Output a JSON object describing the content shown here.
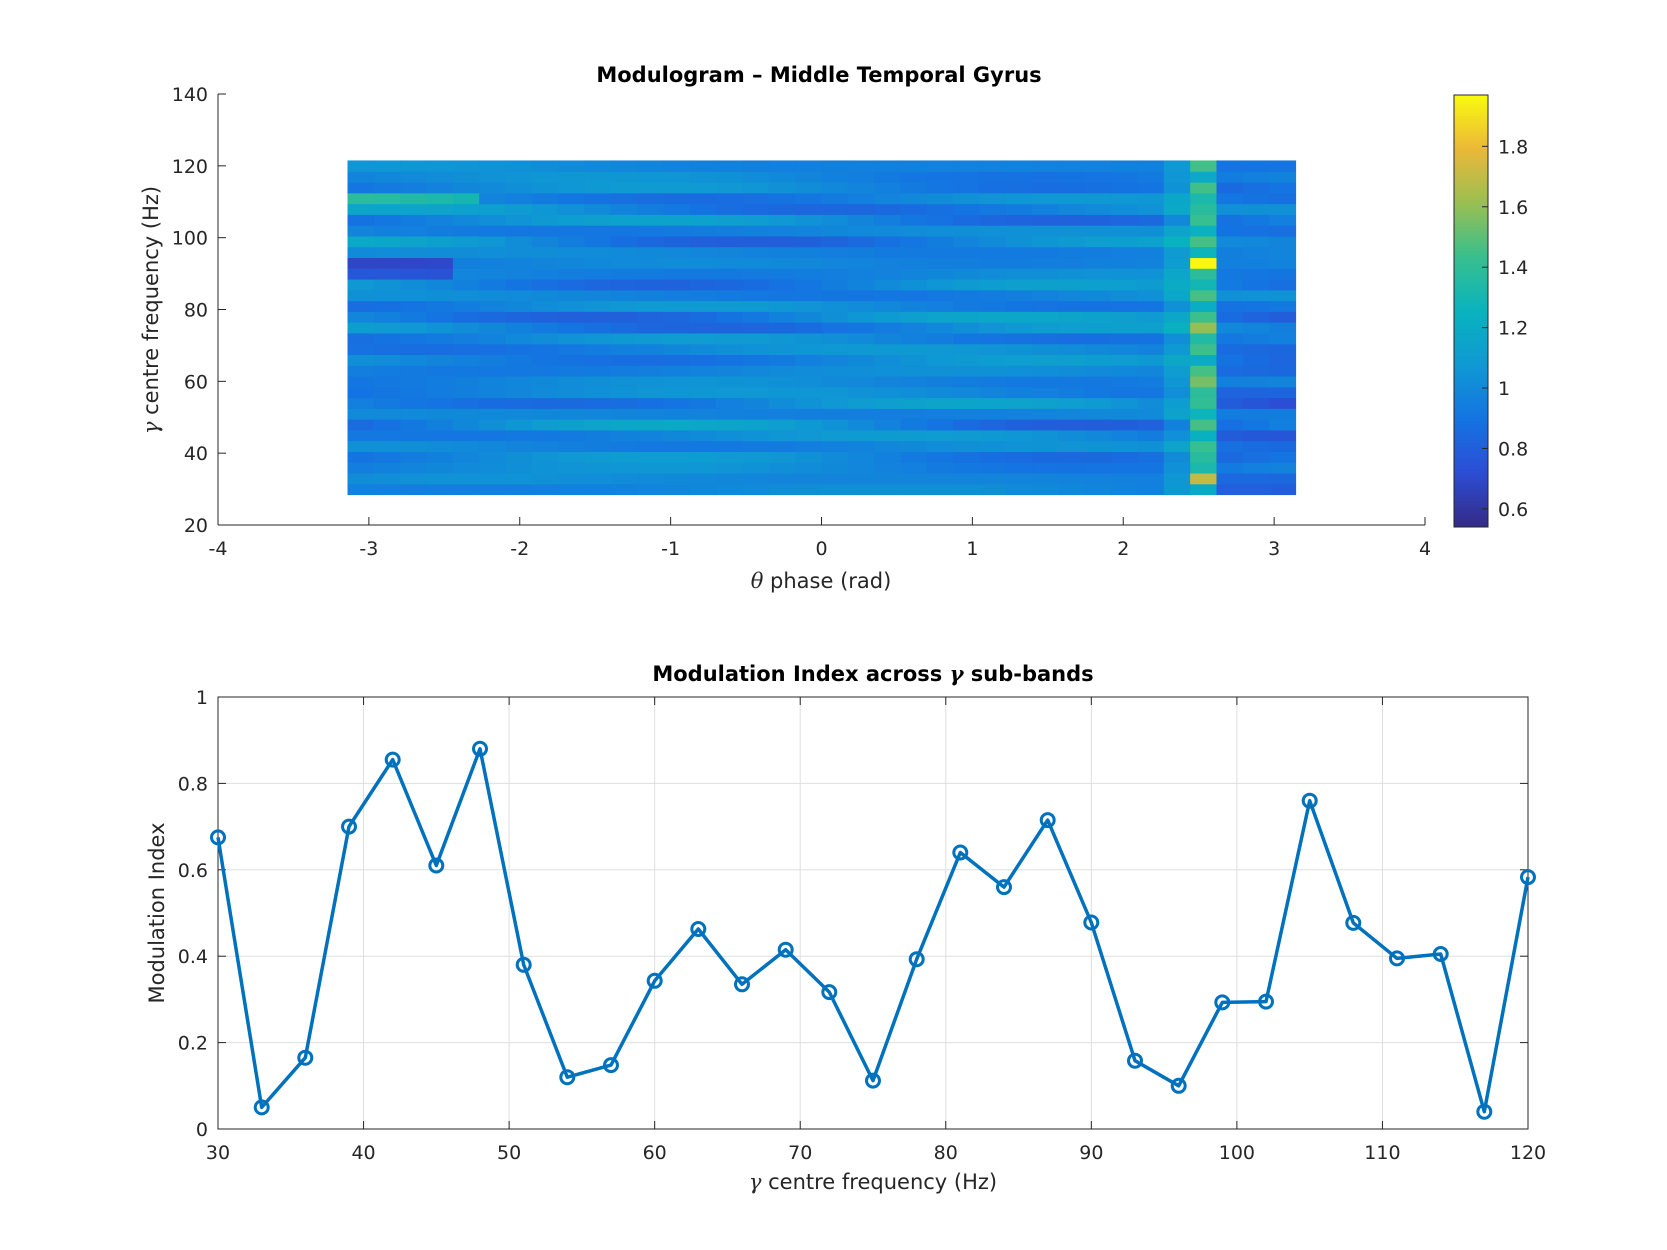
{
  "chart_data": [
    {
      "type": "heatmap",
      "title": "Modulogram – Middle Temporal Gyrus",
      "xlabel": "θ phase (rad)",
      "xlabel_parts": {
        "symbol": "θ",
        "text": " phase (rad)"
      },
      "ylabel": "γ centre frequency (Hz)",
      "ylabel_parts": {
        "symbol": "γ",
        "text": " centre frequency (Hz)"
      },
      "xlim": [
        -4,
        4
      ],
      "ylim": [
        20,
        140
      ],
      "xticks": [
        -4,
        -3,
        -2,
        -1,
        0,
        1,
        2,
        3,
        4
      ],
      "yticks": [
        20,
        40,
        60,
        80,
        100,
        120,
        140
      ],
      "phase_range": [
        -3.1416,
        3.1416
      ],
      "freq_range": [
        28.5,
        121.5
      ],
      "n_phase_bins": 36,
      "freq_centres": [
        30,
        33,
        36,
        39,
        42,
        45,
        48,
        51,
        54,
        57,
        60,
        63,
        66,
        69,
        72,
        75,
        78,
        81,
        84,
        87,
        90,
        93,
        96,
        99,
        102,
        105,
        108,
        111,
        114,
        117,
        120
      ],
      "colormap": "parula",
      "colorbar": {
        "clim": [
          0.54,
          1.97
        ],
        "ticks": [
          0.6,
          0.8,
          1.0,
          1.2,
          1.4,
          1.6,
          1.8
        ],
        "tick_labels": [
          "0.6",
          "0.8",
          "1",
          "1.2",
          "1.4",
          "1.6",
          "1.8"
        ]
      },
      "grid": false,
      "peak_column_bin": 32
    },
    {
      "type": "line",
      "title": "Modulation Index across γ sub-bands",
      "title_parts": {
        "before": "Modulation Index across ",
        "symbol": "γ",
        "after": " sub-bands"
      },
      "xlabel": "γ centre frequency (Hz)",
      "xlabel_parts": {
        "symbol": "γ",
        "text": " centre frequency (Hz)"
      },
      "ylabel": "Modulation Index",
      "xlim": [
        30,
        120
      ],
      "ylim": [
        0,
        1
      ],
      "xticks": [
        30,
        40,
        50,
        60,
        70,
        80,
        90,
        100,
        110,
        120
      ],
      "yticks": [
        0,
        0.2,
        0.4,
        0.6,
        0.8,
        1
      ],
      "ytick_labels": [
        "0",
        "0.2",
        "0.4",
        "0.6",
        "0.8",
        "1"
      ],
      "grid": true,
      "marker": "circle",
      "color": "#0072BD",
      "x": [
        30,
        33,
        36,
        39,
        42,
        45,
        48,
        51,
        54,
        57,
        60,
        63,
        66,
        69,
        72,
        75,
        78,
        81,
        84,
        87,
        90,
        93,
        96,
        99,
        102,
        105,
        108,
        111,
        114,
        117,
        120
      ],
      "y": [
        0.675,
        0.05,
        0.165,
        0.7,
        0.855,
        0.61,
        0.88,
        0.38,
        0.12,
        0.148,
        0.343,
        0.463,
        0.335,
        0.415,
        0.317,
        0.112,
        0.393,
        0.64,
        0.56,
        0.715,
        0.478,
        0.158,
        0.1,
        0.293,
        0.295,
        0.76,
        0.477,
        0.395,
        0.405,
        0.04,
        0.583
      ]
    }
  ]
}
